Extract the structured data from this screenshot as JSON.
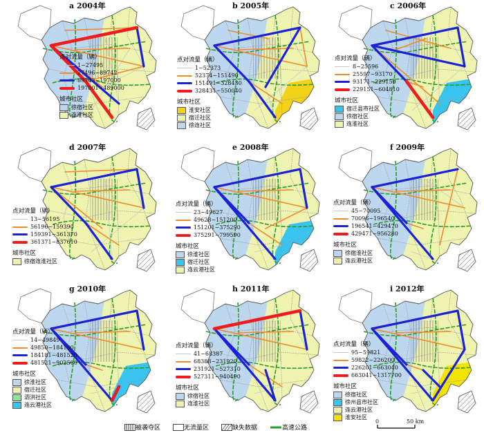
{
  "panels": [
    {
      "label": "a 2004年",
      "flow_header": "点对流量（辆）",
      "flow_classes": [
        "1~27495",
        "27496~89742",
        "89743~197000",
        "197001~489000"
      ],
      "community_header": "城市社区",
      "communities": [
        {
          "name": "徐宿社区",
          "color": "#bcd7ee"
        },
        {
          "name": "连淮社区",
          "color": "#eef3b0"
        }
      ]
    },
    {
      "label": "b 2005年",
      "flow_header": "点对流量（辆）",
      "flow_classes": [
        "1~52373",
        "52374~151490",
        "151491~328430",
        "328431~550040"
      ],
      "community_header": "城市社区",
      "communities": [
        {
          "name": "淮安社区",
          "color": "#f2d21a"
        },
        {
          "name": "宿迁社区",
          "color": "#eef3b0"
        },
        {
          "name": "徐连社区",
          "color": "#bcd7ee"
        }
      ]
    },
    {
      "label": "c 2006年",
      "flow_header": "点对流量（辆）",
      "flow_classes": [
        "8~25596",
        "25597~93170",
        "93171~229150",
        "229151~604810"
      ],
      "community_header": "城市社区",
      "communities": [
        {
          "name": "宿迁县市社区",
          "color": "#38c4ef"
        },
        {
          "name": "徐宿社区",
          "color": "#bcd7ee"
        },
        {
          "name": "连淮社区",
          "color": "#eef3b0"
        }
      ]
    },
    {
      "label": "d 2007年",
      "flow_header": "点对流量（辆）",
      "flow_classes": [
        "13~56195",
        "56196~159390",
        "159391~361370",
        "361371~837610"
      ],
      "community_header": "城市社区",
      "communities": [
        {
          "name": "徐宿连淮社区",
          "color": "#eef3b0"
        }
      ]
    },
    {
      "label": "e 2008年",
      "flow_header": "点对流量（辆）",
      "flow_classes": [
        "23~49627",
        "49628~151200",
        "151201~375290",
        "375291~799590"
      ],
      "community_header": "城市社区",
      "communities": [
        {
          "name": "徐淮社区",
          "color": "#bcd7ee"
        },
        {
          "name": "宿迁社区",
          "color": "#38c4ef"
        },
        {
          "name": "连云港社区",
          "color": "#eef3b0"
        }
      ]
    },
    {
      "label": "f 2009年",
      "flow_header": "点对流量（辆）",
      "flow_classes": [
        "45~70095",
        "70096~196540",
        "196541~429470",
        "429471~956280"
      ],
      "community_header": "城市社区",
      "communities": [
        {
          "name": "徐宿淮社区",
          "color": "#bcd7ee"
        },
        {
          "name": "连云港社区",
          "color": "#eef3b0"
        }
      ]
    },
    {
      "label": "g 2010年",
      "flow_header": "点对流量（辆）",
      "flow_classes": [
        "14~49849",
        "49850~184180",
        "184181~481520",
        "481521~902500"
      ],
      "community_header": "城市社区",
      "communities": [
        {
          "name": "徐淮社区",
          "color": "#bcd7ee"
        },
        {
          "name": "宿迁社区",
          "color": "#eef3b0"
        },
        {
          "name": "泗洪社区",
          "color": "#90e29a"
        },
        {
          "name": "连云港社区",
          "color": "#38c4ef"
        }
      ]
    },
    {
      "label": "h 2011年",
      "flow_header": "点对流量（辆）",
      "flow_classes": [
        "41~68387",
        "68388~231920",
        "231921~527310",
        "527311~940490"
      ],
      "community_header": "城市社区",
      "communities": [
        {
          "name": "徐宿社区",
          "color": "#bcd7ee"
        },
        {
          "name": "连淮社区",
          "color": "#eef3b0"
        }
      ]
    },
    {
      "label": "i 2012年",
      "flow_header": "点对流量（辆）",
      "flow_classes": [
        "95~59821",
        "59822~226200",
        "226201~663040",
        "663041~1317700"
      ],
      "community_header": "城市社区",
      "communities": [
        {
          "name": "徐宿社区",
          "color": "#bcd7ee"
        },
        {
          "name": "徐州县市社区",
          "color": "#38c4ef"
        },
        {
          "name": "连云港社区",
          "color": "#eef3b0"
        },
        {
          "name": "淮安社区",
          "color": "#f2e400"
        }
      ]
    }
  ],
  "flow_style": {
    "colors": [
      "#c8c8c8",
      "#f08a2a",
      "#1b22d6",
      "#ee1c1c"
    ]
  },
  "bottom_legend": [
    {
      "name": "被袭夺区",
      "kind": "hatch-vertical"
    },
    {
      "name": "无流量区",
      "kind": "blank"
    },
    {
      "name": "缺失数据",
      "kind": "hatch-diagonal"
    },
    {
      "name": "高速公路",
      "kind": "line",
      "color": "#2b9a2b"
    }
  ],
  "scale": {
    "zero": "0",
    "label": "50 km"
  }
}
